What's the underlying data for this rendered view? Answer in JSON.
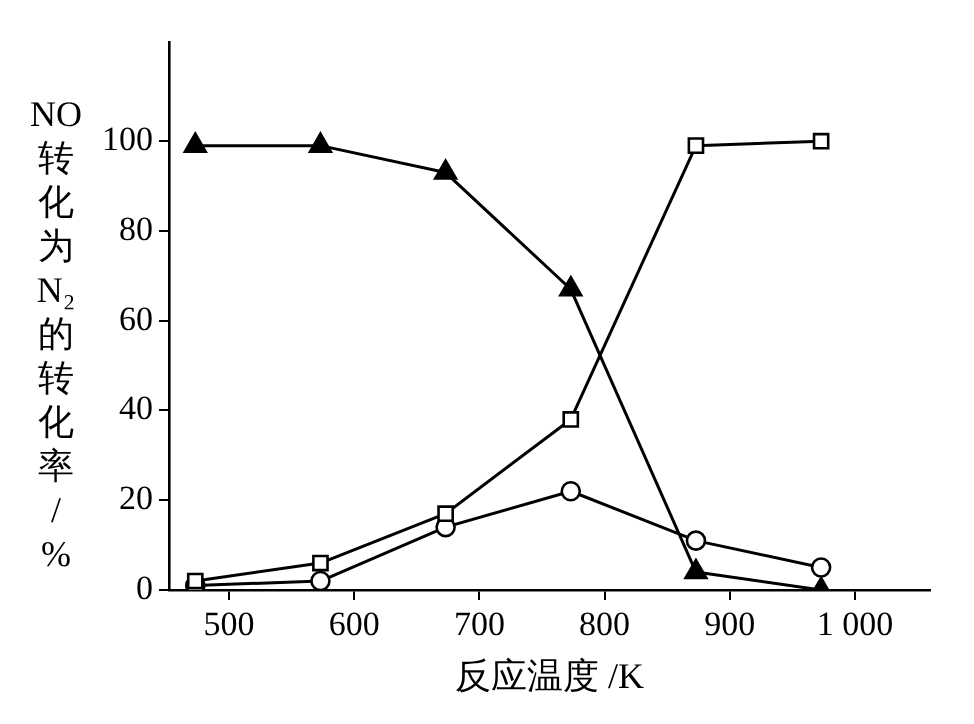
{
  "chart_data": {
    "type": "line",
    "xlabel": "反应温度 /K",
    "ylabel": "NO转化为N₂的转化率/%",
    "xlim": [
      452,
      1060
    ],
    "ylim": [
      0,
      122
    ],
    "xticks": [
      500,
      600,
      700,
      800,
      900,
      {
        "value": 1000,
        "label": "1 000"
      }
    ],
    "yticks": [
      0,
      20,
      40,
      60,
      80,
      100
    ],
    "grid": false,
    "legend": false,
    "line_style": "solid",
    "series": [
      {
        "color": "#000000",
        "marker": "triangle",
        "x": [
          473,
          573,
          673,
          773,
          873,
          973
        ],
        "values": [
          99,
          99,
          93,
          67,
          4,
          0
        ]
      },
      {
        "color": "#000000",
        "marker": "square",
        "x": [
          473,
          573,
          673,
          773,
          873,
          973
        ],
        "values": [
          2,
          6,
          17,
          38,
          99,
          100
        ]
      },
      {
        "color": "#000000",
        "marker": "circle",
        "x": [
          473,
          573,
          673,
          773,
          873,
          973
        ],
        "values": [
          1,
          2,
          14,
          22,
          11,
          5
        ]
      }
    ]
  }
}
